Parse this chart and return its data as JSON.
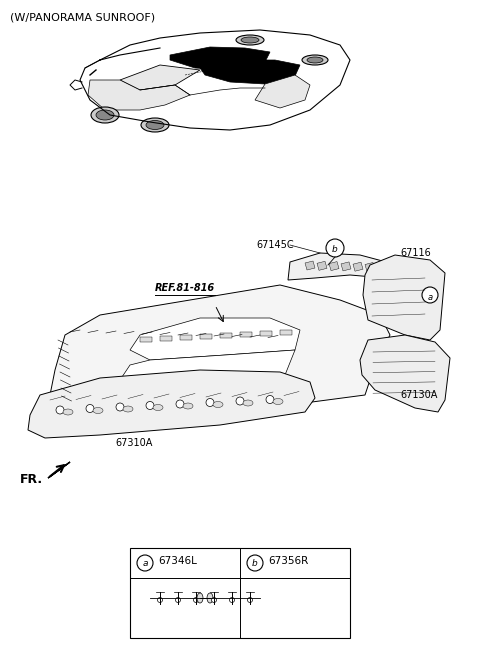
{
  "title": "(W/PANORAMA SUNROOF)",
  "bg_color": "#ffffff",
  "text_color": "#000000",
  "part_labels": {
    "a": "67346L",
    "b": "67356R",
    "67145C": "67145C",
    "67116": "67116",
    "67130A": "67130A",
    "67310A": "67310A",
    "REF": "REF.81-816"
  },
  "figsize": [
    4.8,
    6.54
  ],
  "dpi": 100
}
